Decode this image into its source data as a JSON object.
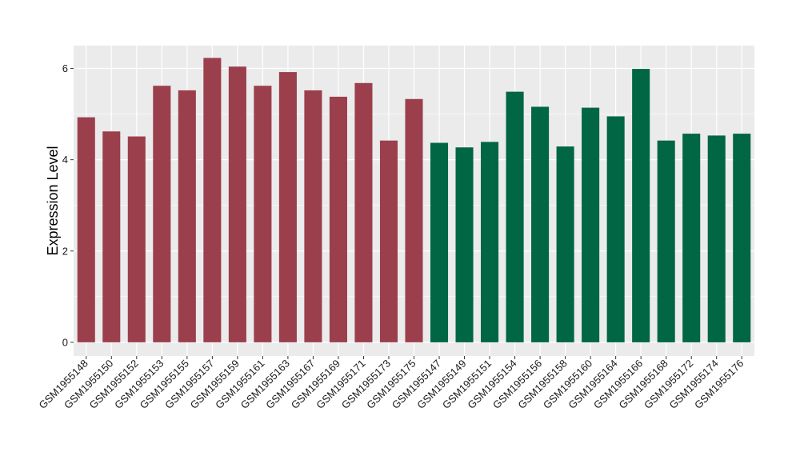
{
  "chart_data": {
    "type": "bar",
    "title": "",
    "xlabel": "",
    "ylabel": "Expression Level",
    "ylim": [
      -0.3,
      6.5
    ],
    "yticks": [
      0,
      2,
      4,
      6
    ],
    "grid": true,
    "legend": "none",
    "categories": [
      "GSM1955148",
      "GSM1955150",
      "GSM1955152",
      "GSM1955153",
      "GSM1955155",
      "GSM1955157",
      "GSM1955159",
      "GSM1955161",
      "GSM1955163",
      "GSM1955167",
      "GSM1955169",
      "GSM1955171",
      "GSM1955173",
      "GSM1955175",
      "GSM1955147",
      "GSM1955149",
      "GSM1955151",
      "GSM1955154",
      "GSM1955156",
      "GSM1955158",
      "GSM1955160",
      "GSM1955164",
      "GSM1955166",
      "GSM1955168",
      "GSM1955172",
      "GSM1955174",
      "GSM1955176"
    ],
    "values": [
      4.93,
      4.62,
      4.51,
      5.62,
      5.52,
      6.23,
      6.04,
      5.62,
      5.92,
      5.52,
      5.38,
      5.68,
      4.42,
      5.33,
      4.37,
      4.27,
      4.39,
      5.49,
      5.16,
      4.29,
      5.14,
      4.95,
      5.99,
      4.42,
      4.57,
      4.53,
      4.57
    ],
    "groups": [
      "A",
      "A",
      "A",
      "A",
      "A",
      "A",
      "A",
      "A",
      "A",
      "A",
      "A",
      "A",
      "A",
      "A",
      "B",
      "B",
      "B",
      "B",
      "B",
      "B",
      "B",
      "B",
      "B",
      "B",
      "B",
      "B",
      "B"
    ],
    "group_colors": {
      "A": "#9b3f4d",
      "B": "#006643"
    },
    "panel_background": "#ebebeb",
    "grid_color": "#ffffff"
  }
}
